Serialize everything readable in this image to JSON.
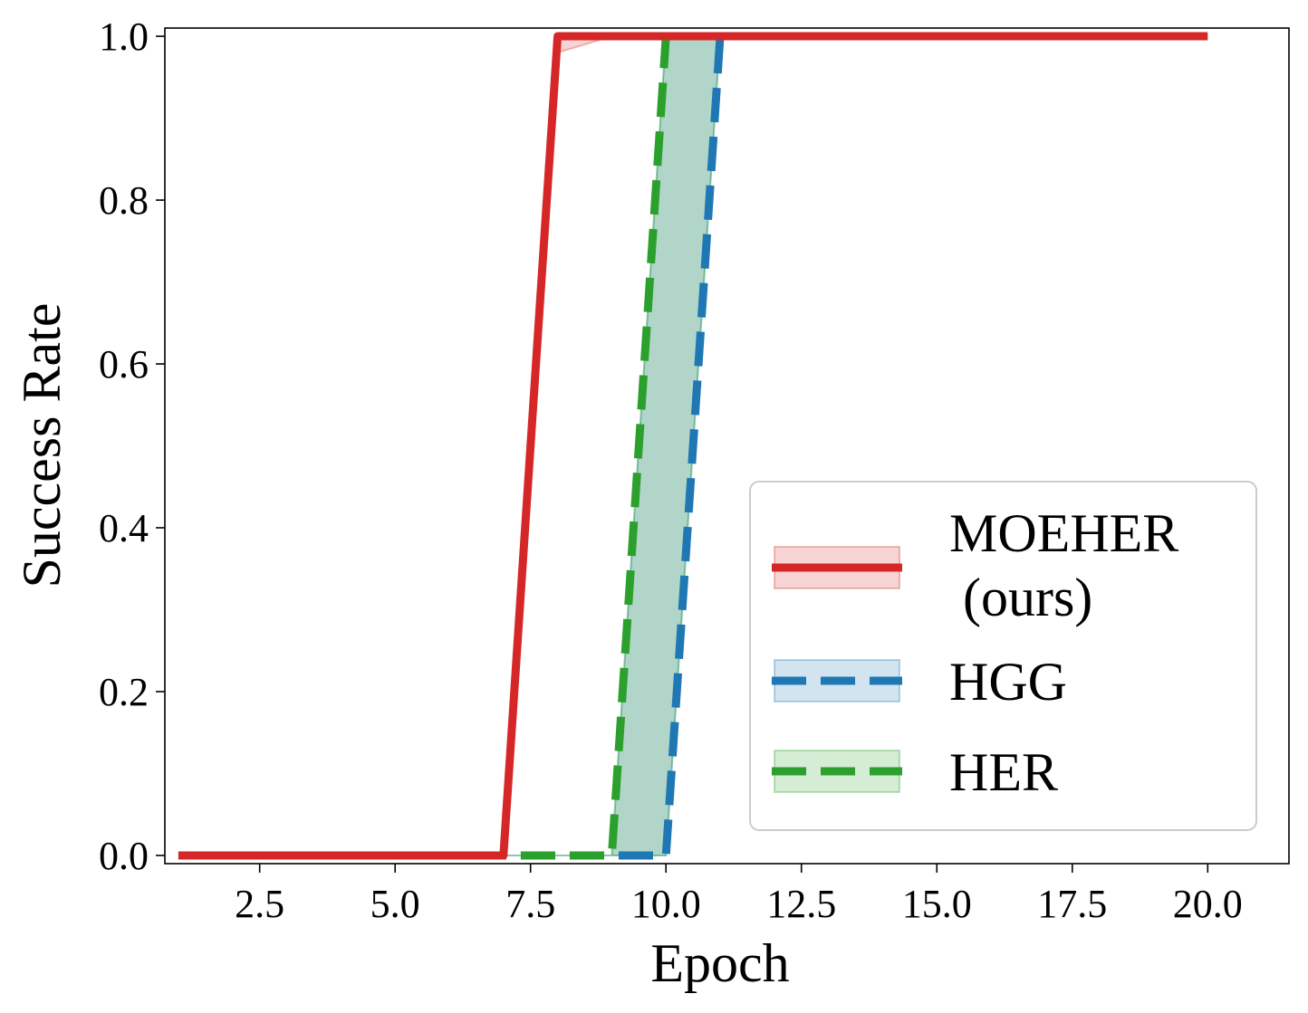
{
  "chart_data": {
    "type": "line",
    "xlabel": "Epoch",
    "ylabel": "Success Rate",
    "xlim": [
      0.75,
      21.5
    ],
    "ylim": [
      -0.01,
      1.01
    ],
    "xticks": [
      2.5,
      5.0,
      7.5,
      10.0,
      12.5,
      15.0,
      17.5,
      20.0
    ],
    "xtick_labels": [
      "2.5",
      "5.0",
      "7.5",
      "10.0",
      "12.5",
      "15.0",
      "17.5",
      "20.0"
    ],
    "yticks": [
      0.0,
      0.2,
      0.4,
      0.6,
      0.8,
      1.0
    ],
    "ytick_labels": [
      "0.0",
      "0.2",
      "0.4",
      "0.6",
      "0.8",
      "1.0"
    ],
    "grid": false,
    "legend_position": "lower-right",
    "x": [
      1,
      2,
      3,
      4,
      5,
      6,
      7,
      8,
      9,
      10,
      11,
      12,
      13,
      14,
      15,
      16,
      17,
      18,
      19,
      20
    ],
    "series": [
      {
        "name": "MOEHER\n (ours)",
        "color": "#d62728",
        "style": "solid",
        "values": [
          0,
          0,
          0,
          0,
          0,
          0,
          0,
          1,
          1,
          1,
          1,
          1,
          1,
          1,
          1,
          1,
          1,
          1,
          1,
          1
        ],
        "band_low": [
          0,
          0,
          0,
          0,
          0,
          0,
          0,
          0.98,
          1,
          1,
          1,
          1,
          1,
          1,
          1,
          1,
          1,
          1,
          1,
          1
        ],
        "band_high": [
          0,
          0,
          0,
          0,
          0,
          0,
          0,
          1,
          1,
          1,
          1,
          1,
          1,
          1,
          1,
          1,
          1,
          1,
          1,
          1
        ]
      },
      {
        "name": "HGG",
        "color": "#1f77b4",
        "style": "dashed",
        "values": [
          0,
          0,
          0,
          0,
          0,
          0,
          0,
          0,
          0,
          0,
          1,
          1,
          1,
          1,
          1,
          1,
          1,
          1,
          1,
          1
        ],
        "band_low": [
          0,
          0,
          0,
          0,
          0,
          0,
          0,
          0,
          0,
          0,
          1,
          1,
          1,
          1,
          1,
          1,
          1,
          1,
          1,
          1
        ],
        "band_high": [
          0,
          0,
          0,
          0,
          0,
          0,
          0,
          0,
          0,
          1,
          1,
          1,
          1,
          1,
          1,
          1,
          1,
          1,
          1,
          1
        ]
      },
      {
        "name": "HER",
        "color": "#2ca02c",
        "style": "dashed",
        "values": [
          0,
          0,
          0,
          0,
          0,
          0,
          0,
          0,
          0,
          1,
          1,
          1,
          1,
          1,
          1,
          1,
          1,
          1,
          1,
          1
        ],
        "band_low": [
          0,
          0,
          0,
          0,
          0,
          0,
          0,
          0,
          0,
          0,
          1,
          1,
          1,
          1,
          1,
          1,
          1,
          1,
          1,
          1
        ],
        "band_high": [
          0,
          0,
          0,
          0,
          0,
          0,
          0,
          0,
          0,
          1,
          1,
          1,
          1,
          1,
          1,
          1,
          1,
          1,
          1,
          1
        ]
      }
    ]
  }
}
